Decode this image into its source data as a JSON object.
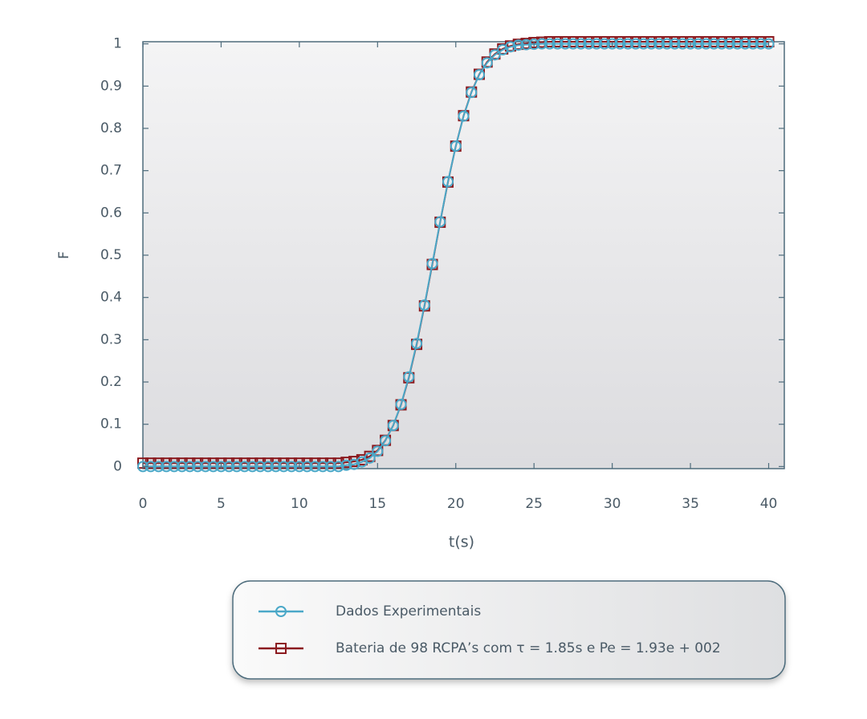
{
  "chart_data": {
    "type": "line",
    "xlabel": "t(s)",
    "ylabel": "F",
    "x": [
      0,
      0.5,
      1,
      1.5,
      2,
      2.5,
      3,
      3.5,
      4,
      4.5,
      5,
      5.5,
      6,
      6.5,
      7,
      7.5,
      8,
      8.5,
      9,
      9.5,
      10,
      10.5,
      11,
      11.5,
      12,
      12.5,
      13,
      13.5,
      14,
      14.5,
      15,
      15.5,
      16,
      16.5,
      17,
      17.5,
      18,
      18.5,
      19,
      19.5,
      20,
      20.5,
      21,
      21.5,
      22,
      22.5,
      23,
      23.5,
      24,
      24.5,
      25,
      25.5,
      26,
      26.5,
      27,
      27.5,
      28,
      28.5,
      29,
      29.5,
      30,
      30.5,
      31,
      31.5,
      32,
      32.5,
      33,
      33.5,
      34,
      34.5,
      35,
      35.5,
      36,
      36.5,
      37,
      37.5,
      38,
      38.5,
      39,
      39.5,
      40
    ],
    "series": [
      {
        "name": "Dados Experimentais",
        "color": "#4aa8c8",
        "marker": "circle",
        "values": [
          0,
          0,
          0,
          0,
          0,
          0,
          0,
          0,
          0,
          0,
          0,
          0,
          0,
          0,
          0,
          0,
          0,
          0,
          0,
          0,
          0,
          0,
          0,
          0,
          0,
          0,
          0.003,
          0.005,
          0.011,
          0.02,
          0.036,
          0.061,
          0.097,
          0.147,
          0.212,
          0.291,
          0.382,
          0.48,
          0.579,
          0.674,
          0.758,
          0.829,
          0.885,
          0.927,
          0.955,
          0.974,
          0.986,
          0.993,
          0.997,
          0.998,
          0.999,
          1,
          1,
          1,
          1,
          1,
          1,
          1,
          1,
          1,
          1,
          1,
          1,
          1,
          1,
          1,
          1,
          1,
          1,
          1,
          1,
          1,
          1,
          1,
          1,
          1,
          1,
          1,
          1,
          1,
          1
        ]
      },
      {
        "name": "Bateria de 98 RCPA’s com τ = 1.85s  e  Pe = 1.93e + 002",
        "color": "#8b1a1f",
        "marker": "square",
        "values": [
          0.008,
          0.008,
          0.008,
          0.008,
          0.008,
          0.008,
          0.008,
          0.008,
          0.008,
          0.008,
          0.008,
          0.008,
          0.008,
          0.008,
          0.008,
          0.008,
          0.008,
          0.008,
          0.008,
          0.008,
          0.008,
          0.008,
          0.008,
          0.008,
          0.008,
          0.008,
          0.01,
          0.012,
          0.016,
          0.024,
          0.038,
          0.062,
          0.097,
          0.146,
          0.21,
          0.289,
          0.38,
          0.478,
          0.578,
          0.673,
          0.758,
          0.83,
          0.886,
          0.928,
          0.957,
          0.976,
          0.988,
          0.995,
          0.999,
          1.001,
          1.003,
          1.004,
          1.005,
          1.005,
          1.005,
          1.005,
          1.005,
          1.005,
          1.005,
          1.005,
          1.005,
          1.005,
          1.005,
          1.005,
          1.005,
          1.005,
          1.005,
          1.005,
          1.005,
          1.005,
          1.005,
          1.005,
          1.005,
          1.005,
          1.005,
          1.005,
          1.005,
          1.005,
          1.005,
          1.005,
          1.005
        ]
      }
    ],
    "xlim": [
      0,
      41
    ],
    "xticks": [
      0,
      5,
      10,
      15,
      20,
      25,
      30,
      35,
      40
    ],
    "ylim": [
      -0.005,
      1.005
    ],
    "yticks": [
      0,
      0.1,
      0.2,
      0.3,
      0.4,
      0.5,
      0.6,
      0.7,
      0.8,
      0.9,
      1
    ]
  }
}
